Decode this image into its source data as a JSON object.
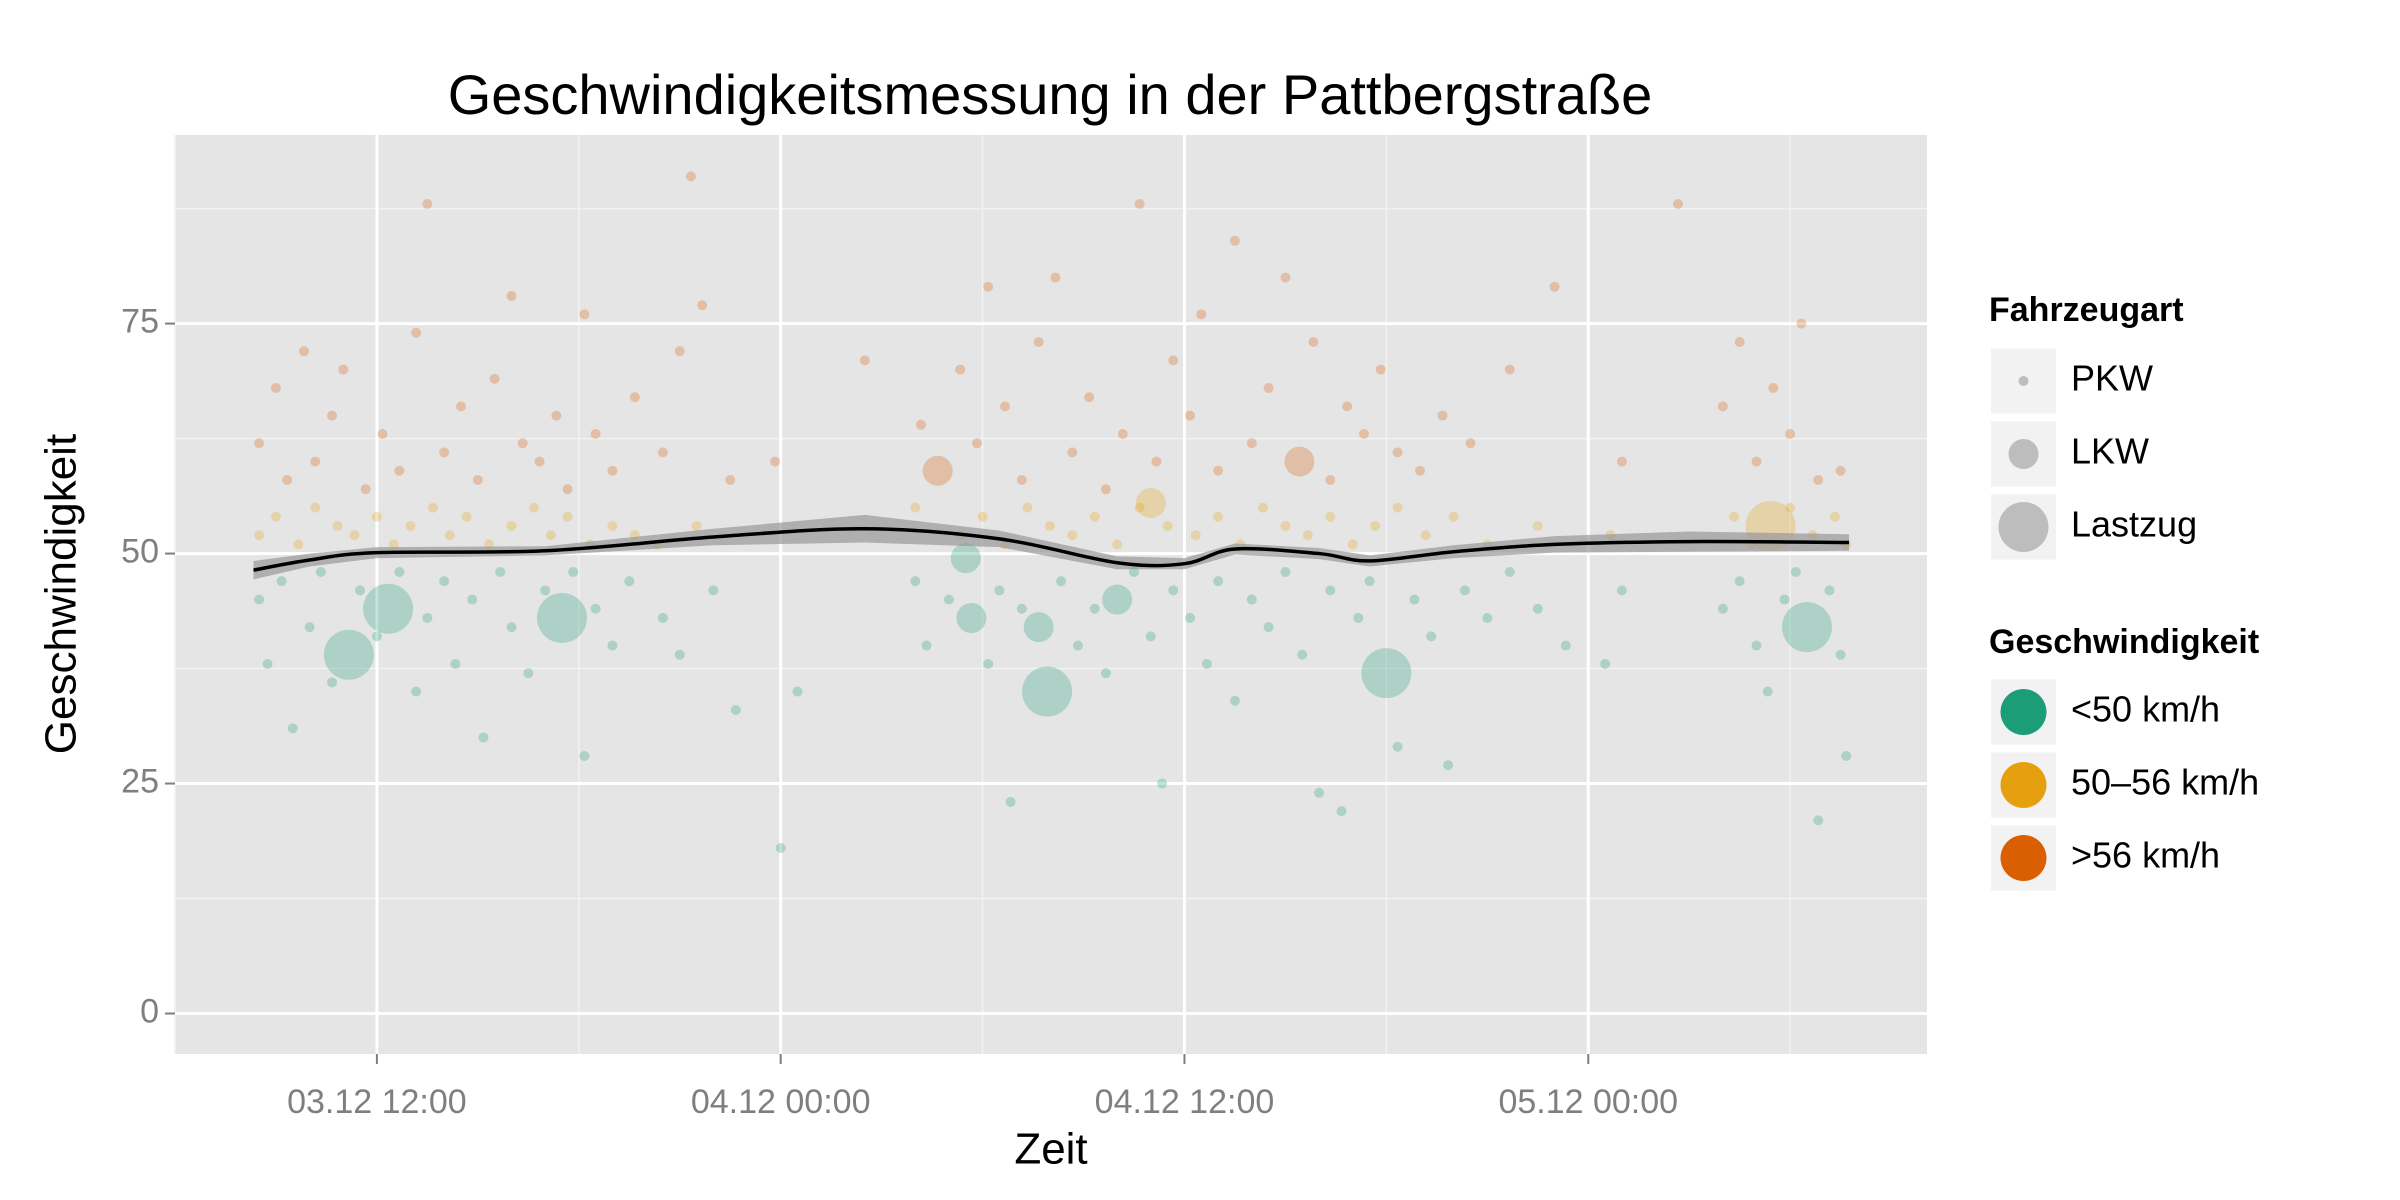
{
  "chart_data": {
    "type": "scatter",
    "title": "Geschwindigkeitsmessung in der Pattbergstraße",
    "x_label": "Zeit",
    "y_label": "Geschwindigkeit",
    "xlim": [
      "03.12 06:00",
      "05.12 10:04"
    ],
    "xticks": [
      "03.12 12:00",
      "04.12 00:00",
      "04.12 12:00",
      "05.12 00:00"
    ],
    "ylim": [
      -4.4,
      95.5
    ],
    "yticks": [
      0,
      25,
      50,
      75
    ],
    "grid": true,
    "size_legend": {
      "title": "Fahrzeugart",
      "labels": [
        "PKW",
        "LKW",
        "Lastzug"
      ]
    },
    "color_legend_title": "Geschwindigkeit",
    "series": [
      {
        "name": "<50 km/h",
        "color": "#1b9e77",
        "points": [
          {
            "x": "03.12 08:30",
            "y": 45
          },
          {
            "x": "03.12 08:45",
            "y": 38
          },
          {
            "x": "03.12 09:10",
            "y": 47
          },
          {
            "x": "03.12 09:30",
            "y": 31
          },
          {
            "x": "03.12 10:00",
            "y": 42
          },
          {
            "x": "03.12 10:20",
            "y": 48
          },
          {
            "x": "03.12 10:40",
            "y": 36
          },
          {
            "x": "03.12 11:10",
            "y": 39,
            "vehicle": "Lastzug"
          },
          {
            "x": "03.12 11:30",
            "y": 46
          },
          {
            "x": "03.12 12:00",
            "y": 41
          },
          {
            "x": "03.12 12:20",
            "y": 44,
            "vehicle": "Lastzug"
          },
          {
            "x": "03.12 12:40",
            "y": 48
          },
          {
            "x": "03.12 13:10",
            "y": 35
          },
          {
            "x": "03.12 13:30",
            "y": 43
          },
          {
            "x": "03.12 14:00",
            "y": 47
          },
          {
            "x": "03.12 14:20",
            "y": 38
          },
          {
            "x": "03.12 14:50",
            "y": 45
          },
          {
            "x": "03.12 15:10",
            "y": 30
          },
          {
            "x": "03.12 15:40",
            "y": 48
          },
          {
            "x": "03.12 16:00",
            "y": 42
          },
          {
            "x": "03.12 16:30",
            "y": 37
          },
          {
            "x": "03.12 17:00",
            "y": 46
          },
          {
            "x": "03.12 17:30",
            "y": 43,
            "vehicle": "Lastzug"
          },
          {
            "x": "03.12 17:50",
            "y": 48
          },
          {
            "x": "03.12 18:10",
            "y": 28
          },
          {
            "x": "03.12 18:30",
            "y": 44
          },
          {
            "x": "03.12 19:00",
            "y": 40
          },
          {
            "x": "03.12 19:30",
            "y": 47
          },
          {
            "x": "03.12 20:30",
            "y": 43
          },
          {
            "x": "03.12 21:00",
            "y": 39
          },
          {
            "x": "03.12 22:00",
            "y": 46
          },
          {
            "x": "03.12 22:40",
            "y": 33
          },
          {
            "x": "04.12 00:00",
            "y": 18
          },
          {
            "x": "04.12 00:30",
            "y": 35
          },
          {
            "x": "04.12 04:00",
            "y": 47
          },
          {
            "x": "04.12 04:20",
            "y": 40
          },
          {
            "x": "04.12 05:00",
            "y": 45
          },
          {
            "x": "04.12 05:30",
            "y": 49.5,
            "vehicle": "LKW"
          },
          {
            "x": "04.12 05:40",
            "y": 43,
            "vehicle": "LKW"
          },
          {
            "x": "04.12 06:10",
            "y": 38
          },
          {
            "x": "04.12 06:30",
            "y": 46
          },
          {
            "x": "04.12 06:50",
            "y": 23
          },
          {
            "x": "04.12 07:10",
            "y": 44
          },
          {
            "x": "04.12 07:40",
            "y": 42,
            "vehicle": "LKW"
          },
          {
            "x": "04.12 07:55",
            "y": 35,
            "vehicle": "Lastzug"
          },
          {
            "x": "04.12 08:20",
            "y": 47
          },
          {
            "x": "04.12 08:50",
            "y": 40
          },
          {
            "x": "04.12 09:20",
            "y": 44
          },
          {
            "x": "04.12 09:40",
            "y": 37
          },
          {
            "x": "04.12 10:00",
            "y": 45,
            "vehicle": "LKW"
          },
          {
            "x": "04.12 10:30",
            "y": 48
          },
          {
            "x": "04.12 11:00",
            "y": 41
          },
          {
            "x": "04.12 11:20",
            "y": 25
          },
          {
            "x": "04.12 11:40",
            "y": 46
          },
          {
            "x": "04.12 12:10",
            "y": 43
          },
          {
            "x": "04.12 12:40",
            "y": 38
          },
          {
            "x": "04.12 13:00",
            "y": 47
          },
          {
            "x": "04.12 13:30",
            "y": 34
          },
          {
            "x": "04.12 14:00",
            "y": 45
          },
          {
            "x": "04.12 14:30",
            "y": 42
          },
          {
            "x": "04.12 15:00",
            "y": 48
          },
          {
            "x": "04.12 15:30",
            "y": 39
          },
          {
            "x": "04.12 16:00",
            "y": 24
          },
          {
            "x": "04.12 16:20",
            "y": 46
          },
          {
            "x": "04.12 16:40",
            "y": 22
          },
          {
            "x": "04.12 17:10",
            "y": 43
          },
          {
            "x": "04.12 17:30",
            "y": 47
          },
          {
            "x": "04.12 18:00",
            "y": 37,
            "vehicle": "Lastzug"
          },
          {
            "x": "04.12 18:20",
            "y": 29
          },
          {
            "x": "04.12 18:50",
            "y": 45
          },
          {
            "x": "04.12 19:20",
            "y": 41
          },
          {
            "x": "04.12 19:50",
            "y": 27
          },
          {
            "x": "04.12 20:20",
            "y": 46
          },
          {
            "x": "04.12 21:00",
            "y": 43
          },
          {
            "x": "04.12 21:40",
            "y": 48
          },
          {
            "x": "04.12 22:30",
            "y": 44
          },
          {
            "x": "04.12 23:20",
            "y": 40
          },
          {
            "x": "05.12 00:30",
            "y": 38
          },
          {
            "x": "05.12 01:00",
            "y": 46
          },
          {
            "x": "05.12 04:00",
            "y": 44
          },
          {
            "x": "05.12 04:30",
            "y": 47
          },
          {
            "x": "05.12 05:00",
            "y": 40
          },
          {
            "x": "05.12 05:20",
            "y": 35
          },
          {
            "x": "05.12 05:50",
            "y": 45
          },
          {
            "x": "05.12 06:10",
            "y": 48
          },
          {
            "x": "05.12 06:30",
            "y": 42,
            "vehicle": "Lastzug"
          },
          {
            "x": "05.12 06:50",
            "y": 21
          },
          {
            "x": "05.12 07:10",
            "y": 46
          },
          {
            "x": "05.12 07:30",
            "y": 39
          },
          {
            "x": "05.12 07:40",
            "y": 28
          }
        ]
      },
      {
        "name": "50–56 km/h",
        "color": "#e6a00f",
        "points": [
          {
            "x": "03.12 08:30",
            "y": 52
          },
          {
            "x": "03.12 09:00",
            "y": 54
          },
          {
            "x": "03.12 09:40",
            "y": 51
          },
          {
            "x": "03.12 10:10",
            "y": 55
          },
          {
            "x": "03.12 10:50",
            "y": 53
          },
          {
            "x": "03.12 11:20",
            "y": 52
          },
          {
            "x": "03.12 12:00",
            "y": 54
          },
          {
            "x": "03.12 12:30",
            "y": 51
          },
          {
            "x": "03.12 13:00",
            "y": 53
          },
          {
            "x": "03.12 13:40",
            "y": 55
          },
          {
            "x": "03.12 14:10",
            "y": 52
          },
          {
            "x": "03.12 14:40",
            "y": 54
          },
          {
            "x": "03.12 15:20",
            "y": 51
          },
          {
            "x": "03.12 16:00",
            "y": 53
          },
          {
            "x": "03.12 16:40",
            "y": 55
          },
          {
            "x": "03.12 17:10",
            "y": 52
          },
          {
            "x": "03.12 17:40",
            "y": 54
          },
          {
            "x": "03.12 18:20",
            "y": 51
          },
          {
            "x": "03.12 19:00",
            "y": 53
          },
          {
            "x": "03.12 19:40",
            "y": 52
          },
          {
            "x": "03.12 20:20",
            "y": 51
          },
          {
            "x": "03.12 21:30",
            "y": 53
          },
          {
            "x": "04.12 04:00",
            "y": 55
          },
          {
            "x": "04.12 05:20",
            "y": 52
          },
          {
            "x": "04.12 06:00",
            "y": 54
          },
          {
            "x": "04.12 06:40",
            "y": 51
          },
          {
            "x": "04.12 07:20",
            "y": 55
          },
          {
            "x": "04.12 08:00",
            "y": 53
          },
          {
            "x": "04.12 08:40",
            "y": 52
          },
          {
            "x": "04.12 09:20",
            "y": 54
          },
          {
            "x": "04.12 10:00",
            "y": 51
          },
          {
            "x": "04.12 10:40",
            "y": 55
          },
          {
            "x": "04.12 11:00",
            "y": 55.5,
            "vehicle": "LKW"
          },
          {
            "x": "04.12 11:30",
            "y": 53
          },
          {
            "x": "04.12 12:20",
            "y": 52
          },
          {
            "x": "04.12 13:00",
            "y": 54
          },
          {
            "x": "04.12 13:40",
            "y": 51
          },
          {
            "x": "04.12 14:20",
            "y": 55
          },
          {
            "x": "04.12 15:00",
            "y": 53
          },
          {
            "x": "04.12 15:40",
            "y": 52
          },
          {
            "x": "04.12 16:20",
            "y": 54
          },
          {
            "x": "04.12 17:00",
            "y": 51
          },
          {
            "x": "04.12 17:40",
            "y": 53
          },
          {
            "x": "04.12 18:20",
            "y": 55
          },
          {
            "x": "04.12 19:10",
            "y": 52
          },
          {
            "x": "04.12 20:00",
            "y": 54
          },
          {
            "x": "04.12 21:00",
            "y": 51
          },
          {
            "x": "04.12 22:30",
            "y": 53
          },
          {
            "x": "05.12 00:40",
            "y": 52
          },
          {
            "x": "05.12 04:20",
            "y": 54
          },
          {
            "x": "05.12 04:50",
            "y": 51
          },
          {
            "x": "05.12 05:25",
            "y": 53,
            "vehicle": "Lastzug"
          },
          {
            "x": "05.12 06:00",
            "y": 55
          },
          {
            "x": "05.12 06:40",
            "y": 52
          },
          {
            "x": "05.12 07:20",
            "y": 54
          },
          {
            "x": "05.12 07:40",
            "y": 51
          }
        ]
      },
      {
        "name": ">56 km/h",
        "color": "#d95f02",
        "points": [
          {
            "x": "03.12 08:30",
            "y": 62
          },
          {
            "x": "03.12 09:00",
            "y": 68
          },
          {
            "x": "03.12 09:20",
            "y": 58
          },
          {
            "x": "03.12 09:50",
            "y": 72
          },
          {
            "x": "03.12 10:10",
            "y": 60
          },
          {
            "x": "03.12 10:40",
            "y": 65
          },
          {
            "x": "03.12 11:00",
            "y": 70
          },
          {
            "x": "03.12 11:40",
            "y": 57
          },
          {
            "x": "03.12 12:10",
            "y": 63
          },
          {
            "x": "03.12 12:40",
            "y": 59
          },
          {
            "x": "03.12 13:10",
            "y": 74
          },
          {
            "x": "03.12 13:30",
            "y": 88
          },
          {
            "x": "03.12 14:00",
            "y": 61
          },
          {
            "x": "03.12 14:30",
            "y": 66
          },
          {
            "x": "03.12 15:00",
            "y": 58
          },
          {
            "x": "03.12 15:30",
            "y": 69
          },
          {
            "x": "03.12 16:00",
            "y": 78
          },
          {
            "x": "03.12 16:20",
            "y": 62
          },
          {
            "x": "03.12 16:50",
            "y": 60
          },
          {
            "x": "03.12 17:20",
            "y": 65
          },
          {
            "x": "03.12 17:40",
            "y": 57
          },
          {
            "x": "03.12 18:10",
            "y": 76
          },
          {
            "x": "03.12 18:30",
            "y": 63
          },
          {
            "x": "03.12 19:00",
            "y": 59
          },
          {
            "x": "03.12 19:40",
            "y": 67
          },
          {
            "x": "03.12 20:30",
            "y": 61
          },
          {
            "x": "03.12 21:00",
            "y": 72
          },
          {
            "x": "03.12 21:20",
            "y": 91
          },
          {
            "x": "03.12 21:40",
            "y": 77
          },
          {
            "x": "03.12 22:30",
            "y": 58
          },
          {
            "x": "03.12 23:50",
            "y": 60
          },
          {
            "x": "04.12 02:30",
            "y": 71
          },
          {
            "x": "04.12 04:10",
            "y": 64
          },
          {
            "x": "04.12 04:40",
            "y": 59,
            "vehicle": "LKW"
          },
          {
            "x": "04.12 05:20",
            "y": 70
          },
          {
            "x": "04.12 05:50",
            "y": 62
          },
          {
            "x": "04.12 06:10",
            "y": 79
          },
          {
            "x": "04.12 06:40",
            "y": 66
          },
          {
            "x": "04.12 07:10",
            "y": 58
          },
          {
            "x": "04.12 07:40",
            "y": 73
          },
          {
            "x": "04.12 08:10",
            "y": 80
          },
          {
            "x": "04.12 08:40",
            "y": 61
          },
          {
            "x": "04.12 09:10",
            "y": 67
          },
          {
            "x": "04.12 09:40",
            "y": 57
          },
          {
            "x": "04.12 10:10",
            "y": 63
          },
          {
            "x": "04.12 10:40",
            "y": 88
          },
          {
            "x": "04.12 11:10",
            "y": 60
          },
          {
            "x": "04.12 11:40",
            "y": 71
          },
          {
            "x": "04.12 12:10",
            "y": 65
          },
          {
            "x": "04.12 12:30",
            "y": 76
          },
          {
            "x": "04.12 13:00",
            "y": 59
          },
          {
            "x": "04.12 13:30",
            "y": 84
          },
          {
            "x": "04.12 14:00",
            "y": 62
          },
          {
            "x": "04.12 14:30",
            "y": 68
          },
          {
            "x": "04.12 15:00",
            "y": 80
          },
          {
            "x": "04.12 15:25",
            "y": 60,
            "vehicle": "LKW"
          },
          {
            "x": "04.12 15:50",
            "y": 73
          },
          {
            "x": "04.12 16:20",
            "y": 58
          },
          {
            "x": "04.12 16:50",
            "y": 66
          },
          {
            "x": "04.12 17:20",
            "y": 63
          },
          {
            "x": "04.12 17:50",
            "y": 70
          },
          {
            "x": "04.12 18:20",
            "y": 61
          },
          {
            "x": "04.12 19:00",
            "y": 59
          },
          {
            "x": "04.12 19:40",
            "y": 65
          },
          {
            "x": "04.12 20:30",
            "y": 62
          },
          {
            "x": "04.12 21:40",
            "y": 70
          },
          {
            "x": "04.12 23:00",
            "y": 79
          },
          {
            "x": "05.12 01:00",
            "y": 60
          },
          {
            "x": "05.12 02:40",
            "y": 88
          },
          {
            "x": "05.12 04:00",
            "y": 66
          },
          {
            "x": "05.12 04:30",
            "y": 73
          },
          {
            "x": "05.12 05:00",
            "y": 60
          },
          {
            "x": "05.12 05:30",
            "y": 68
          },
          {
            "x": "05.12 06:00",
            "y": 63
          },
          {
            "x": "05.12 06:20",
            "y": 75
          },
          {
            "x": "05.12 06:50",
            "y": 58
          },
          {
            "x": "05.12 07:30",
            "y": 59
          }
        ]
      }
    ],
    "smooth": {
      "color": "#000000",
      "band_color": "#999999",
      "x": [
        "03.12 08:20",
        "03.12 10:00",
        "03.12 12:00",
        "03.12 17:00",
        "03.12 22:00",
        "04.12 02:30",
        "04.12 06:30",
        "04.12 10:00",
        "04.12 12:00",
        "04.12 13:30",
        "04.12 16:00",
        "04.12 17:30",
        "04.12 20:00",
        "04.12 23:00",
        "05.12 03:00",
        "05.12 07:45"
      ],
      "values": [
        48.2,
        49.3,
        50.1,
        50.3,
        51.8,
        52.7,
        51.6,
        49,
        48.9,
        50.5,
        50,
        49.2,
        50.2,
        51,
        51.3,
        51.2
      ],
      "lower": [
        47.2,
        48.6,
        49.5,
        49.8,
        50.9,
        51.2,
        50.7,
        48.3,
        48.3,
        49.9,
        49.4,
        48.6,
        49.5,
        50.1,
        50.2,
        50.3
      ],
      "upper": [
        49.2,
        50,
        50.7,
        50.8,
        52.7,
        54.2,
        52.5,
        49.7,
        49.5,
        51.1,
        50.6,
        49.8,
        50.9,
        51.9,
        52.4,
        52.1
      ]
    }
  }
}
